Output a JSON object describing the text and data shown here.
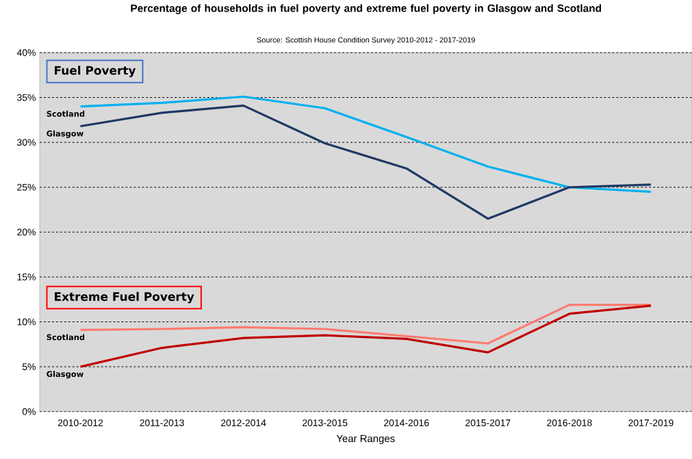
{
  "chart_data": {
    "type": "line",
    "title": "Percentage of households in fuel poverty and extreme fuel poverty in Glasgow and Scotland",
    "subtitle": "Source: Scottish House Condition Survey 2010-2012 - 2017-2019",
    "xlabel": "Year Ranges",
    "categories": [
      "2010-2012",
      "2011-2013",
      "2012-2014",
      "2013-2015",
      "2014-2016",
      "2015-2017",
      "2016-2018",
      "2017-2019"
    ],
    "series": [
      {
        "name": "Scotland",
        "color": "#00b0f0",
        "values": [
          34.0,
          34.4,
          35.1,
          33.8,
          30.6,
          27.3,
          25.0,
          24.5
        ]
      },
      {
        "name": "Glasgow",
        "color": "#1f3864",
        "values": [
          31.8,
          33.3,
          34.1,
          29.9,
          27.1,
          21.5,
          25.0,
          25.3
        ]
      },
      {
        "name": "Scotland",
        "color": "#ff7c70",
        "values": [
          9.1,
          9.2,
          9.4,
          9.2,
          8.4,
          7.6,
          11.9,
          11.9
        ]
      },
      {
        "name": "Glasgow",
        "color": "#c00000",
        "values": [
          5.0,
          7.1,
          8.2,
          8.5,
          8.1,
          6.6,
          10.9,
          11.8
        ]
      }
    ],
    "annotations": [
      "Fuel Poverty",
      "Extreme Fuel Poverty"
    ],
    "ylim": [
      0,
      40
    ],
    "yticks": [
      {
        "value": 0,
        "label": "0%"
      },
      {
        "value": 5,
        "label": "5%"
      },
      {
        "value": 10,
        "label": "10%"
      },
      {
        "value": 15,
        "label": "15%"
      },
      {
        "value": 20,
        "label": "20%"
      },
      {
        "value": 25,
        "label": "25%"
      },
      {
        "value": 30,
        "label": "30%"
      },
      {
        "value": 35,
        "label": "35%"
      },
      {
        "value": 40,
        "label": "40%"
      }
    ],
    "grid": "y",
    "marker": "none",
    "line_style": "solid"
  }
}
